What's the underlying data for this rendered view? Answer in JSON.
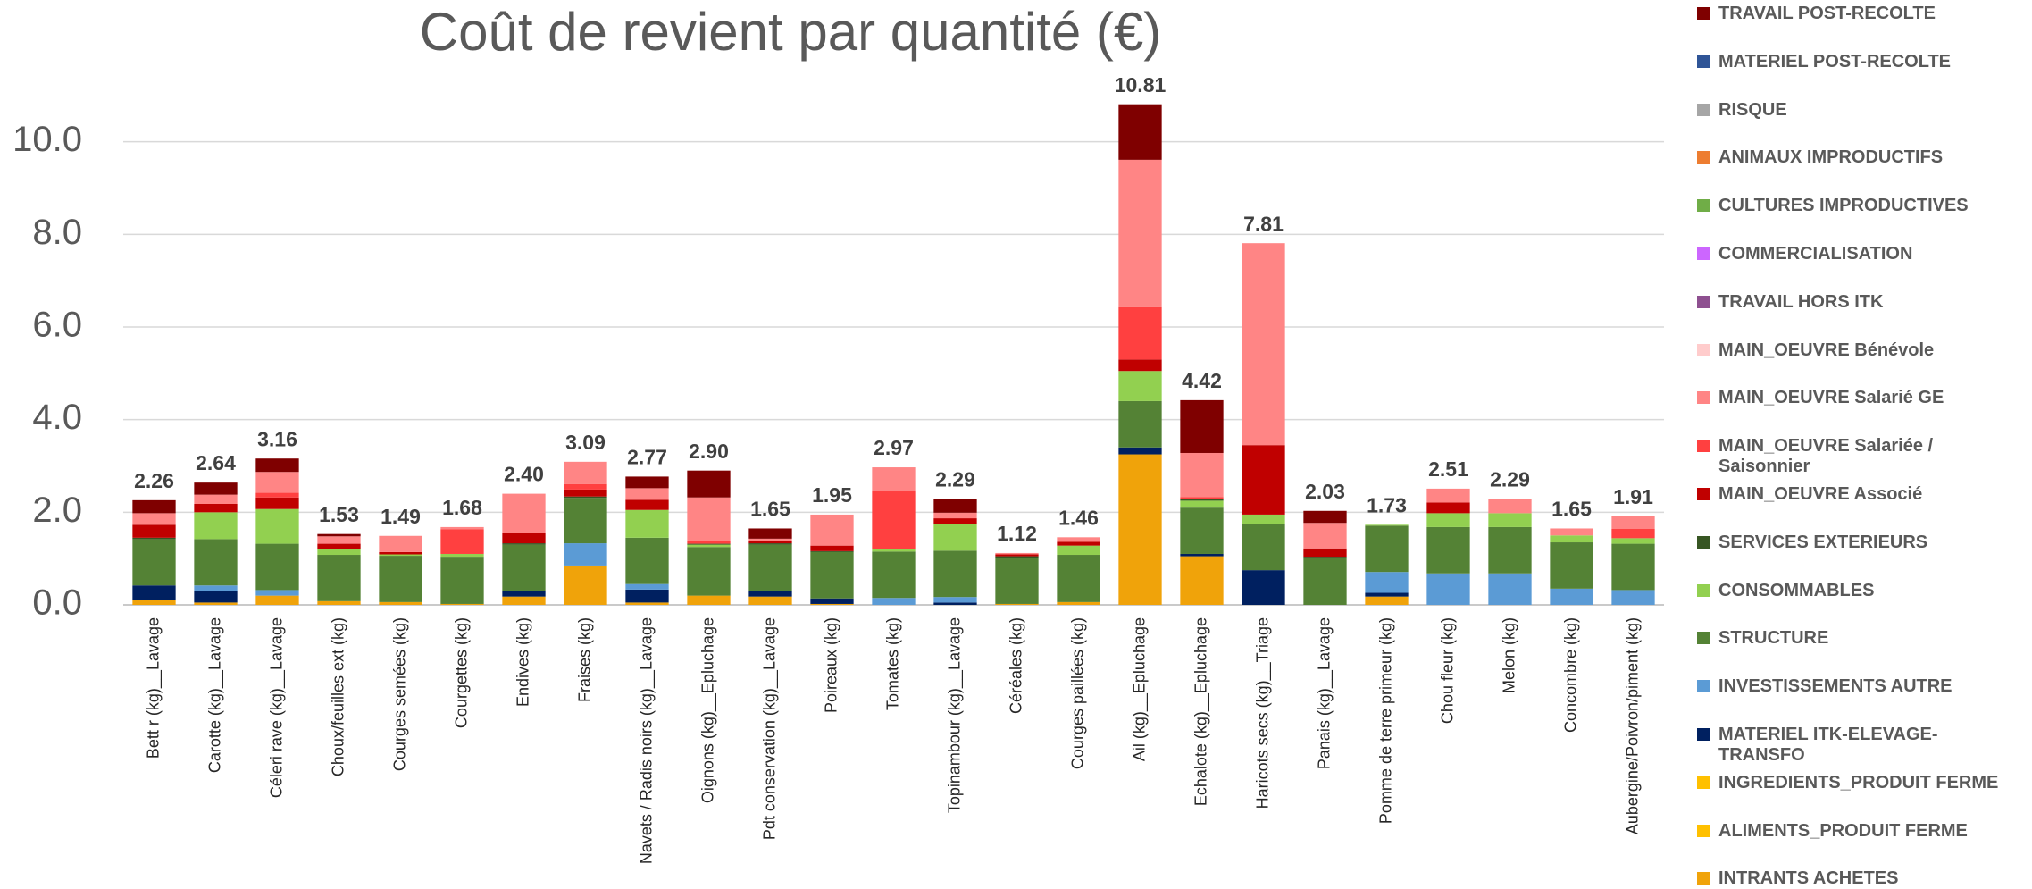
{
  "chart_data": {
    "type": "stacked_bar",
    "title": "Coût de revient par quantité (€)",
    "categories": [
      "Bett r (kg)__Lavage",
      "Carotte (kg)__Lavage",
      "Céleri rave (kg)__Lavage",
      "Choux/feuilles ext (kg)",
      "Courges semées (kg)",
      "Courgettes (kg)",
      "Endives (kg)",
      "Fraises (kg)",
      "Navets / Radis noirs (kg)__Lavage",
      "Oignons (kg)__Epluchage",
      "Pdt conservation (kg)__Lavage",
      "Poireaux (kg)",
      "Tomates (kg)",
      "Topinambour (kg)__Lavage",
      "Céréales (kg)",
      "Courges paillées (kg)",
      "Ail (kg)__Epluchage",
      "Echalote (kg)__Epluchage",
      "Haricots secs (kg)__Triage",
      "Panais (kg)__Lavage",
      "Pomme de terre primeur (kg)",
      "Chou fleur (kg)",
      "Melon (kg)",
      "Concombre (kg)",
      "Aubergine/Poivron/piment (kg)"
    ],
    "series": [
      {
        "name": "INTRANTS ACHETES",
        "color": "#f0a30a",
        "values": [
          0.1,
          0.05,
          0.2,
          0.08,
          0.06,
          0.02,
          0.18,
          0.85,
          0.05,
          0.2,
          0.18,
          0.02,
          0,
          0,
          0.02,
          0.06,
          3.25,
          1.05,
          0,
          0,
          0.18,
          0,
          0,
          0,
          0
        ]
      },
      {
        "name": "ALIMENTS_PRODUIT FERME",
        "color": "#ffc000",
        "values": [
          0,
          0,
          0,
          0,
          0,
          0,
          0,
          0,
          0,
          0,
          0,
          0,
          0,
          0,
          0,
          0,
          0,
          0,
          0,
          0,
          0,
          0,
          0,
          0,
          0
        ]
      },
      {
        "name": "INGREDIENTS_PRODUIT FERME",
        "color": "#ffc000",
        "values": [
          0,
          0,
          0,
          0,
          0,
          0,
          0,
          0,
          0,
          0,
          0,
          0,
          0,
          0,
          0,
          0,
          0,
          0,
          0,
          0,
          0,
          0,
          0,
          0,
          0
        ]
      },
      {
        "name": "MATERIEL ITK-ELEVAGE-TRANSFO",
        "color": "#002060",
        "values": [
          0.32,
          0.25,
          0,
          0,
          0,
          0,
          0.12,
          0,
          0.28,
          0,
          0.12,
          0.12,
          0,
          0.05,
          0,
          0,
          0.15,
          0.05,
          0.75,
          0,
          0.08,
          0,
          0,
          0,
          0
        ]
      },
      {
        "name": "INVESTISSEMENTS AUTRE",
        "color": "#5b9bd5",
        "values": [
          0,
          0.12,
          0.12,
          0,
          0,
          0,
          0,
          0.48,
          0.12,
          0,
          0,
          0,
          0.15,
          0.12,
          0,
          0,
          0,
          0,
          0,
          0,
          0.45,
          0.68,
          0.68,
          0.35,
          0.32
        ]
      },
      {
        "name": "STRUCTURE",
        "color": "#548235",
        "values": [
          1.0,
          1.0,
          1.0,
          1.0,
          1.0,
          1.02,
          1.0,
          0.98,
          1.0,
          1.05,
          1.0,
          1.0,
          1.0,
          1.0,
          1.0,
          1.02,
          1.0,
          1.0,
          1.0,
          1.02,
          1.0,
          1.0,
          1.0,
          1.0,
          1.0
        ]
      },
      {
        "name": "CONSOMMABLES",
        "color": "#92d050",
        "values": [
          0,
          0.58,
          0.75,
          0.12,
          0.03,
          0.06,
          0,
          0,
          0.6,
          0.05,
          0,
          0,
          0.05,
          0.58,
          0,
          0.2,
          0.65,
          0.15,
          0.2,
          0,
          0.02,
          0.3,
          0.3,
          0.15,
          0.12
        ]
      },
      {
        "name": "SERVICES EXTERIEURS",
        "color": "#375623",
        "values": [
          0.03,
          0,
          0,
          0,
          0,
          0,
          0.03,
          0.03,
          0,
          0.02,
          0.03,
          0.02,
          0,
          0,
          0.03,
          0,
          0,
          0.03,
          0,
          0.02,
          0,
          0,
          0,
          0,
          0
        ]
      },
      {
        "name": "MAIN_OEUVRE Associé",
        "color": "#c00000",
        "values": [
          0.28,
          0.18,
          0.25,
          0.12,
          0.05,
          0,
          0.22,
          0.15,
          0.22,
          0,
          0.05,
          0.12,
          0,
          0.12,
          0.04,
          0.08,
          0.25,
          0,
          1.5,
          0.18,
          0,
          0.23,
          0,
          0,
          0
        ]
      },
      {
        "name": "MAIN_OEUVRE Salariée / Saisonnier",
        "color": "#ff4040",
        "values": [
          0,
          0,
          0.1,
          0,
          0,
          0.53,
          0,
          0.12,
          0,
          0.05,
          0,
          0,
          1.25,
          0,
          0,
          0,
          1.13,
          0.05,
          0,
          0,
          0,
          0,
          0,
          0,
          0.2
        ]
      },
      {
        "name": "MAIN_OEUVRE Salarié GE",
        "color": "#ff8585",
        "values": [
          0.25,
          0.2,
          0.45,
          0.16,
          0.35,
          0.05,
          0.85,
          0.48,
          0.25,
          0.95,
          0.05,
          0.67,
          0.52,
          0.12,
          0.03,
          0.1,
          3.18,
          0.95,
          4.36,
          0.55,
          0,
          0.3,
          0.31,
          0.15,
          0.27
        ]
      },
      {
        "name": "MAIN_OEUVRE Bénévole",
        "color": "#ffcccc",
        "values": [
          0,
          0,
          0,
          0,
          0,
          0,
          0,
          0,
          0,
          0,
          0,
          0,
          0,
          0,
          0,
          0,
          0,
          0,
          0,
          0,
          0,
          0,
          0,
          0,
          0
        ]
      },
      {
        "name": "TRAVAIL HORS ITK",
        "color": "#8e5090",
        "values": [
          0,
          0,
          0,
          0,
          0,
          0,
          0,
          0,
          0,
          0,
          0,
          0,
          0,
          0,
          0,
          0,
          0,
          0,
          0,
          0,
          0,
          0,
          0,
          0,
          0
        ]
      },
      {
        "name": "COMMERCIALISATION",
        "color": "#cc66ff",
        "values": [
          0,
          0,
          0,
          0,
          0,
          0,
          0,
          0,
          0,
          0,
          0,
          0,
          0,
          0,
          0,
          0,
          0,
          0,
          0,
          0,
          0,
          0,
          0,
          0,
          0
        ]
      },
      {
        "name": "CULTURES IMPRODUCTIVES",
        "color": "#70ad47",
        "values": [
          0,
          0,
          0,
          0,
          0,
          0,
          0,
          0,
          0,
          0,
          0,
          0,
          0,
          0,
          0,
          0,
          0,
          0,
          0,
          0,
          0,
          0,
          0,
          0,
          0
        ]
      },
      {
        "name": "ANIMAUX IMPRODUCTIFS",
        "color": "#ed7d31",
        "values": [
          0,
          0,
          0,
          0,
          0,
          0,
          0,
          0,
          0,
          0,
          0,
          0,
          0,
          0,
          0,
          0,
          0,
          0,
          0,
          0,
          0,
          0,
          0,
          0,
          0
        ]
      },
      {
        "name": "RISQUE",
        "color": "#a6a6a6",
        "values": [
          0,
          0,
          0,
          0,
          0,
          0,
          0,
          0,
          0,
          0,
          0,
          0,
          0,
          0,
          0,
          0,
          0,
          0,
          0,
          0,
          0,
          0,
          0,
          0,
          0
        ]
      },
      {
        "name": "MATERIEL POST-RECOLTE",
        "color": "#2f5597",
        "values": [
          0,
          0,
          0,
          0,
          0,
          0,
          0,
          0,
          0,
          0,
          0,
          0,
          0,
          0,
          0,
          0,
          0,
          0,
          0,
          0,
          0,
          0,
          0,
          0,
          0
        ]
      },
      {
        "name": "TRAVAIL POST-RECOLTE",
        "color": "#7f0000",
        "values": [
          0.28,
          0.26,
          0.29,
          0.05,
          0,
          0,
          0,
          0,
          0.25,
          0.58,
          0.22,
          0,
          0,
          0.3,
          0,
          0,
          1.2,
          1.14,
          0,
          0.26,
          0,
          0,
          0,
          0,
          0
        ]
      }
    ],
    "totals": [
      "2.26",
      "2.64",
      "3.16",
      "1.53",
      "1.49",
      "1.68",
      "2.40",
      "3.09",
      "2.77",
      "2.90",
      "1.65",
      "1.95",
      "2.97",
      "2.29",
      "1.12",
      "1.46",
      "10.81",
      "4.42",
      "7.81",
      "2.03",
      "1.73",
      "2.51",
      "2.29",
      "1.65",
      "1.91"
    ],
    "ylim": [
      0,
      12
    ],
    "yticks": [
      {
        "value": 0,
        "label": "0.0"
      },
      {
        "value": 2,
        "label": "2.0"
      },
      {
        "value": 4,
        "label": "4.0"
      },
      {
        "value": 6,
        "label": "6.0"
      },
      {
        "value": 8,
        "label": "8.0"
      },
      {
        "value": 10,
        "label": "10.0"
      }
    ],
    "grid": true
  }
}
